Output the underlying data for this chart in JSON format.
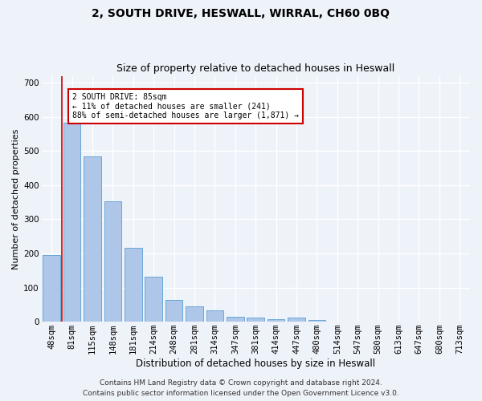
{
  "title1": "2, SOUTH DRIVE, HESWALL, WIRRAL, CH60 0BQ",
  "title2": "Size of property relative to detached houses in Heswall",
  "xlabel": "Distribution of detached houses by size in Heswall",
  "ylabel": "Number of detached properties",
  "categories": [
    "48sqm",
    "81sqm",
    "115sqm",
    "148sqm",
    "181sqm",
    "214sqm",
    "248sqm",
    "281sqm",
    "314sqm",
    "347sqm",
    "381sqm",
    "414sqm",
    "447sqm",
    "480sqm",
    "514sqm",
    "547sqm",
    "580sqm",
    "613sqm",
    "647sqm",
    "680sqm",
    "713sqm"
  ],
  "values": [
    196,
    582,
    484,
    352,
    216,
    131,
    63,
    45,
    33,
    15,
    12,
    8,
    11,
    6,
    0,
    0,
    0,
    0,
    0,
    0,
    0
  ],
  "bar_color": "#aec6e8",
  "bar_edge_color": "#5a9fd4",
  "marker_line_color": "#cc0000",
  "annotation_text": "2 SOUTH DRIVE: 85sqm\n← 11% of detached houses are smaller (241)\n88% of semi-detached houses are larger (1,871) →",
  "annotation_box_color": "#ffffff",
  "annotation_box_edge_color": "#cc0000",
  "ylim": [
    0,
    720
  ],
  "yticks": [
    0,
    100,
    200,
    300,
    400,
    500,
    600,
    700
  ],
  "footer1": "Contains HM Land Registry data © Crown copyright and database right 2024.",
  "footer2": "Contains public sector information licensed under the Open Government Licence v3.0.",
  "background_color": "#eef2f9",
  "grid_color": "#ffffff",
  "title1_fontsize": 10,
  "title2_fontsize": 9,
  "xlabel_fontsize": 8.5,
  "ylabel_fontsize": 8,
  "tick_fontsize": 7.5,
  "footer_fontsize": 6.5
}
